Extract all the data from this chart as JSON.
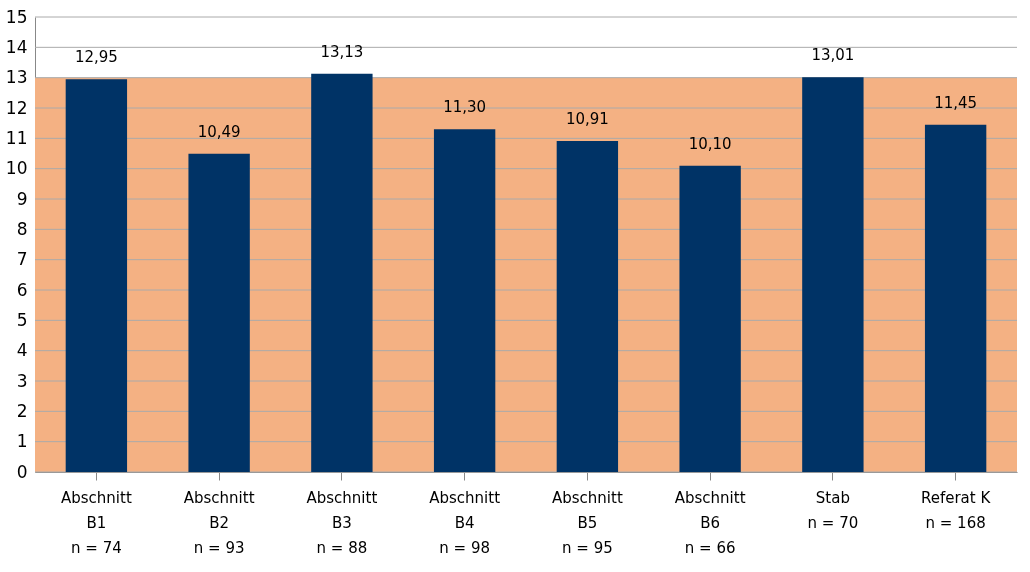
{
  "chart_data": {
    "type": "bar",
    "categories": [
      "Abschnitt\nB1\nn = 74",
      "Abschnitt\nB2\nn = 93",
      "Abschnitt\nB3\nn = 88",
      "Abschnitt\nB4\nn = 98",
      "Abschnitt\nB5\nn = 95",
      "Abschnitt\nB6\nn = 66",
      "Stab\nn = 70",
      "Referat K\nn = 168"
    ],
    "values": [
      12.95,
      10.49,
      13.13,
      11.3,
      10.91,
      10.1,
      13.01,
      11.45
    ],
    "value_labels": [
      "12,95",
      "10,49",
      "13,13",
      "11,30",
      "10,91",
      "10,10",
      "13,01",
      "11,45"
    ],
    "color": "#003366",
    "ylim": [
      0,
      15
    ],
    "yticks": [
      0,
      1,
      2,
      3,
      4,
      5,
      6,
      7,
      8,
      9,
      10,
      11,
      12,
      13,
      14,
      15
    ],
    "bands": [
      {
        "axis": "y",
        "from": 0,
        "to": 13,
        "color": "#f4b183"
      }
    ],
    "grid": "y"
  }
}
